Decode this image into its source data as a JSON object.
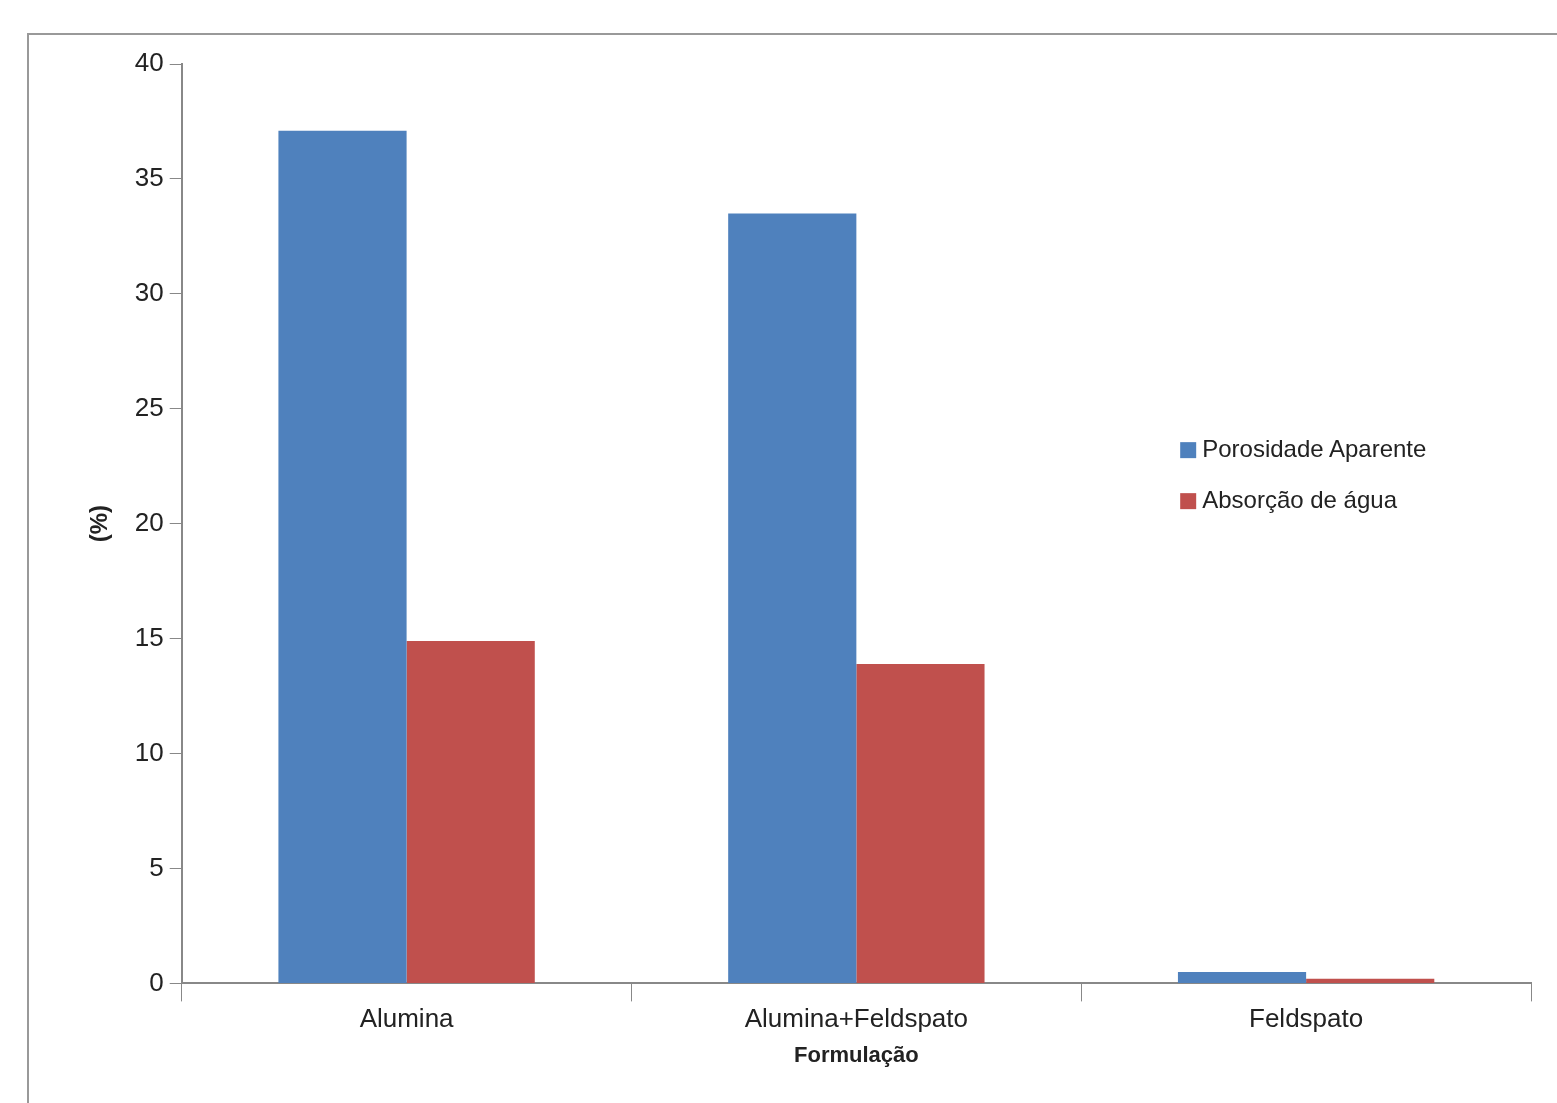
{
  "chart_data": {
    "type": "bar",
    "xlabel": "Formulação",
    "ylabel": "(%)",
    "categories": [
      "Alumina",
      "Alumina+Feldspato",
      "Feldspato"
    ],
    "series": [
      {
        "name": "Porosidade Aparente",
        "color": "#4f81bd",
        "values": [
          37.1,
          33.5,
          0.5
        ]
      },
      {
        "name": "Absorção de água",
        "color": "#c0504d",
        "values": [
          14.9,
          13.9,
          0.2
        ]
      }
    ],
    "ylim": [
      0,
      40
    ],
    "yticks": [
      0,
      5,
      10,
      15,
      20,
      25,
      30,
      35,
      40
    ],
    "grid": false,
    "legend": "right"
  }
}
